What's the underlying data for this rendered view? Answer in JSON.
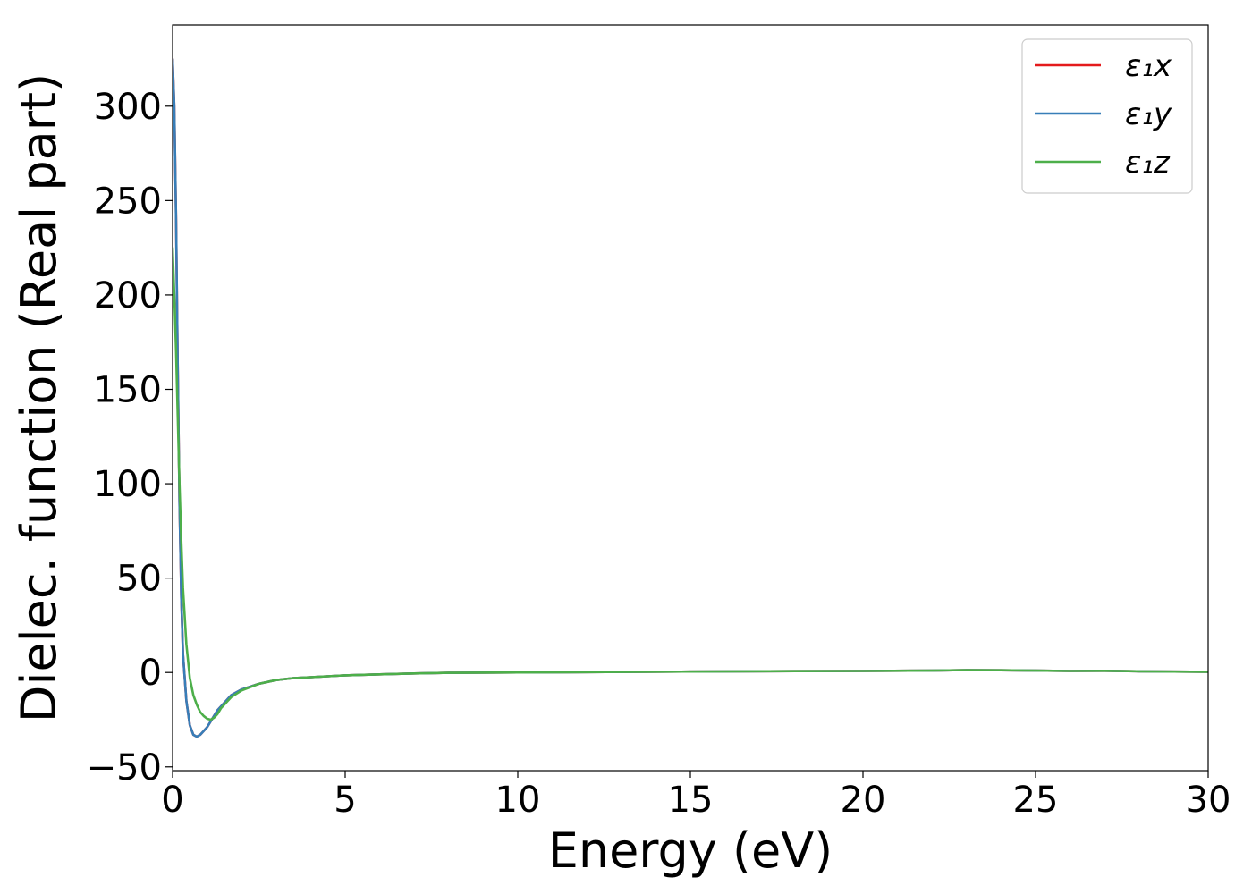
{
  "chart_data": {
    "type": "line",
    "xlabel": "Energy (eV)",
    "ylabel": "Dielec. function (Real part)",
    "xlim": [
      0,
      30
    ],
    "ylim": [
      -52,
      343
    ],
    "xticks": [
      0,
      5,
      10,
      15,
      20,
      25,
      30
    ],
    "yticks": [
      -50,
      0,
      50,
      100,
      150,
      200,
      250,
      300
    ],
    "ytick_labels": [
      "−50",
      "0",
      "50",
      "100",
      "150",
      "200",
      "250",
      "300"
    ],
    "grid": false,
    "legend_position": "top-right",
    "series": [
      {
        "name": "ε₁x",
        "color": "#e41a1c",
        "x": [
          0,
          0.05,
          0.1,
          0.15,
          0.2,
          0.25,
          0.3,
          0.4,
          0.5,
          0.6,
          0.7,
          0.8,
          0.9,
          1.0,
          1.1,
          1.2,
          1.3,
          1.5,
          1.7,
          2.0,
          2.5,
          3.0,
          3.5,
          4.0,
          5.0,
          6.0,
          7.0,
          8.0,
          10.0,
          12.0,
          15.0,
          18.0,
          20.0,
          22.0,
          23.0,
          24.0,
          25.0,
          26.0,
          27.0,
          28.0,
          29.0,
          30.0
        ],
        "y": [
          325,
          300,
          240,
          160,
          90,
          40,
          10,
          -15,
          -28,
          -33,
          -34,
          -33,
          -31,
          -29,
          -26,
          -23,
          -20,
          -16,
          -12,
          -9,
          -6,
          -4,
          -3,
          -2.5,
          -1.5,
          -1,
          -0.5,
          -0.2,
          0,
          0.2,
          0.5,
          0.7,
          0.8,
          1.0,
          1.3,
          1.2,
          1.0,
          0.8,
          0.9,
          0.6,
          0.5,
          0.4
        ]
      },
      {
        "name": "ε₁y",
        "color": "#377eb8",
        "x": [
          0,
          0.05,
          0.1,
          0.15,
          0.2,
          0.25,
          0.3,
          0.4,
          0.5,
          0.6,
          0.7,
          0.8,
          0.9,
          1.0,
          1.1,
          1.2,
          1.3,
          1.5,
          1.7,
          2.0,
          2.5,
          3.0,
          3.5,
          4.0,
          5.0,
          6.0,
          7.0,
          8.0,
          10.0,
          12.0,
          15.0,
          18.0,
          20.0,
          22.0,
          23.0,
          24.0,
          25.0,
          26.0,
          27.0,
          28.0,
          29.0,
          30.0
        ],
        "y": [
          325,
          300,
          240,
          160,
          90,
          40,
          10,
          -15,
          -28,
          -33,
          -34,
          -33,
          -31,
          -29,
          -26,
          -23,
          -20,
          -16,
          -12,
          -9,
          -6,
          -4,
          -3,
          -2.5,
          -1.5,
          -1,
          -0.5,
          -0.2,
          0,
          0.2,
          0.5,
          0.7,
          0.8,
          1.0,
          1.3,
          1.2,
          1.0,
          0.8,
          0.9,
          0.6,
          0.5,
          0.4
        ]
      },
      {
        "name": "ε₁z",
        "color": "#4daf4a",
        "x": [
          0,
          0.05,
          0.1,
          0.15,
          0.2,
          0.25,
          0.3,
          0.4,
          0.5,
          0.6,
          0.7,
          0.8,
          0.9,
          1.0,
          1.1,
          1.2,
          1.3,
          1.4,
          1.5,
          1.7,
          2.0,
          2.5,
          3.0,
          3.5,
          4.0,
          5.0,
          6.0,
          7.0,
          8.0,
          10.0,
          12.0,
          15.0,
          18.0,
          20.0,
          22.0,
          23.0,
          24.0,
          25.0,
          26.0,
          27.0,
          28.0,
          29.0,
          30.0
        ],
        "y": [
          225,
          200,
          170,
          135,
          100,
          70,
          45,
          15,
          -3,
          -12,
          -17,
          -21,
          -23,
          -24.5,
          -25,
          -24,
          -22,
          -19,
          -17,
          -13,
          -9.5,
          -6,
          -4,
          -3,
          -2.5,
          -1.5,
          -1,
          -0.5,
          -0.2,
          0,
          0.2,
          0.5,
          0.7,
          0.8,
          1.0,
          1.3,
          1.2,
          1.0,
          0.8,
          0.9,
          0.6,
          0.5,
          0.4
        ]
      }
    ]
  }
}
